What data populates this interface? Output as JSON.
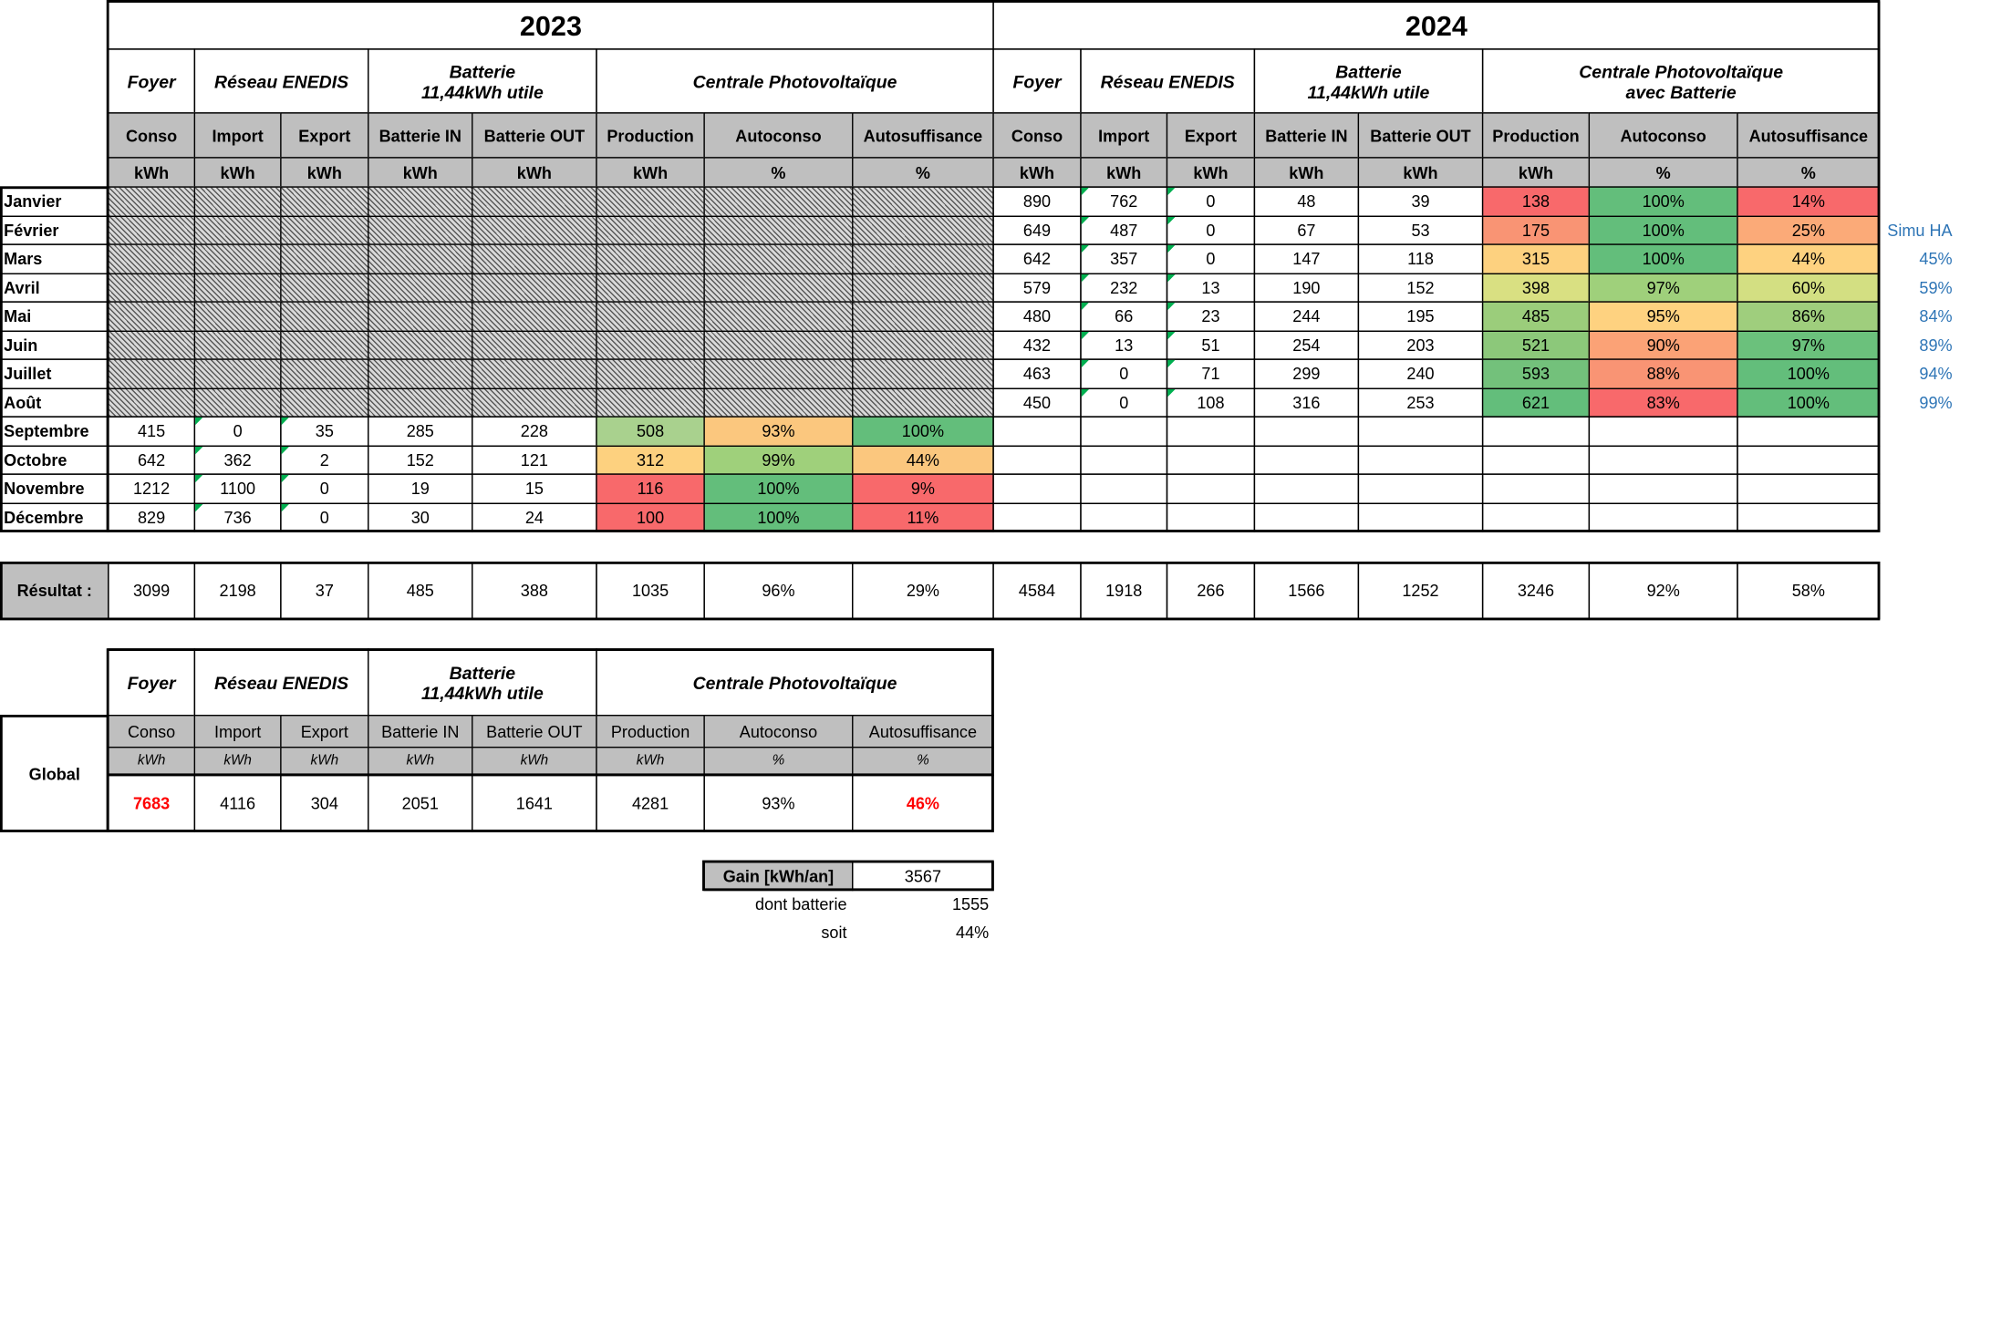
{
  "years": [
    "2023",
    "2024"
  ],
  "groups": {
    "foyer": "Foyer",
    "reseau": "Réseau ENEDIS",
    "batterie": "Batterie\n11,44kWh utile",
    "centrale_2023": "Centrale Photovoltaïque",
    "centrale_2024": "Centrale Photovoltaïque\navec Batterie",
    "centrale_global": "Centrale Photovoltaïque"
  },
  "columns": [
    "Conso",
    "Import",
    "Export",
    "Batterie IN",
    "Batterie OUT",
    "Production",
    "Autoconso",
    "Autosuffisance"
  ],
  "units": [
    "kWh",
    "kWh",
    "kWh",
    "kWh",
    "kWh",
    "kWh",
    "%",
    "%"
  ],
  "months": [
    "Janvier",
    "Février",
    "Mars",
    "Avril",
    "Mai",
    "Juin",
    "Juillet",
    "Août",
    "Septembre",
    "Octobre",
    "Novembre",
    "Décembre"
  ],
  "rows_2023": [
    null,
    null,
    null,
    null,
    null,
    null,
    null,
    null,
    [
      "415",
      "0",
      "35",
      "285",
      "228",
      "508",
      "93%",
      "100%"
    ],
    [
      "642",
      "362",
      "2",
      "152",
      "121",
      "312",
      "99%",
      "44%"
    ],
    [
      "1212",
      "1100",
      "0",
      "19",
      "15",
      "116",
      "100%",
      "9%"
    ],
    [
      "829",
      "736",
      "0",
      "30",
      "24",
      "100",
      "100%",
      "11%"
    ]
  ],
  "rows_2024": [
    [
      "890",
      "762",
      "0",
      "48",
      "39",
      "138",
      "100%",
      "14%"
    ],
    [
      "649",
      "487",
      "0",
      "67",
      "53",
      "175",
      "100%",
      "25%"
    ],
    [
      "642",
      "357",
      "0",
      "147",
      "118",
      "315",
      "100%",
      "44%"
    ],
    [
      "579",
      "232",
      "13",
      "190",
      "152",
      "398",
      "97%",
      "60%"
    ],
    [
      "480",
      "66",
      "23",
      "244",
      "195",
      "485",
      "95%",
      "86%"
    ],
    [
      "432",
      "13",
      "51",
      "254",
      "203",
      "521",
      "90%",
      "97%"
    ],
    [
      "463",
      "0",
      "71",
      "299",
      "240",
      "593",
      "88%",
      "100%"
    ],
    [
      "450",
      "0",
      "108",
      "316",
      "253",
      "621",
      "83%",
      "100%"
    ],
    null,
    null,
    null,
    null
  ],
  "colors_2023": [
    null,
    null,
    null,
    null,
    null,
    null,
    null,
    null,
    [
      "#a9d18e",
      "#fbc77e",
      "#63be7b"
    ],
    [
      "#fdd17f",
      "#9fd07b",
      "#fbc77e"
    ],
    [
      "#f8696b",
      "#63be7b",
      "#f8696b"
    ],
    [
      "#f8696b",
      "#63be7b",
      "#f8696b"
    ]
  ],
  "colors_2024": [
    [
      "#f8696b",
      "#63be7b",
      "#f8696b"
    ],
    [
      "#f99474",
      "#63be7b",
      "#fbaa78"
    ],
    [
      "#fdd17f",
      "#63be7b",
      "#fed280"
    ],
    [
      "#d9e082",
      "#9fd07b",
      "#d3df82"
    ],
    [
      "#9bcd7b",
      "#fed280",
      "#9fce7d"
    ],
    [
      "#8cc87a",
      "#fba276",
      "#6bc17c"
    ],
    [
      "#73c17b",
      "#f99474",
      "#63be7b"
    ],
    [
      "#63be7b",
      "#f8696b",
      "#63be7b"
    ],
    null,
    null,
    null,
    null
  ],
  "simu": {
    "label": "Simu HA",
    "values": [
      "45%",
      "59%",
      "84%",
      "89%",
      "94%",
      "99%"
    ]
  },
  "resultat": {
    "label": "Résultat :",
    "y2023": [
      "3099",
      "2198",
      "37",
      "485",
      "388",
      "1035",
      "96%",
      "29%"
    ],
    "y2024": [
      "4584",
      "1918",
      "266",
      "1566",
      "1252",
      "3246",
      "92%",
      "58%"
    ]
  },
  "global": {
    "label": "Global",
    "values": [
      "7683",
      "4116",
      "304",
      "2051",
      "1641",
      "4281",
      "93%",
      "46%"
    ]
  },
  "gain": {
    "label": "Gain [kWh/an]",
    "value": "3567",
    "battery_label": "dont batterie",
    "battery_value": "1555",
    "soit_label": "soit",
    "soit_value": "44%"
  }
}
